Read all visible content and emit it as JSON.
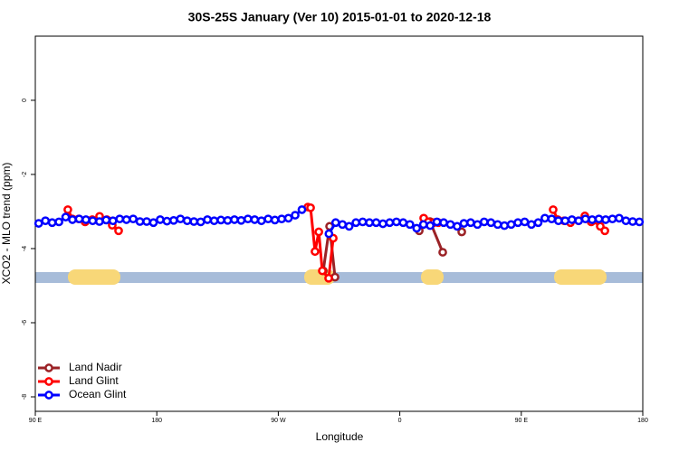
{
  "chart_data": {
    "type": "line",
    "title": "30S-25S January (Ver 10)   2015-01-01 to 2020-12-18",
    "x_label": "Longitude",
    "y_label": "XCO2 - MLO trend (ppm)",
    "xlim": [
      90,
      540
    ],
    "ylim": [
      -8.39,
      1.73
    ],
    "xticks": [
      {
        "value": 90,
        "label": "90 E"
      },
      180,
      {
        "value": 270,
        "label": "90 W"
      },
      {
        "value": 360,
        "label": "0"
      },
      {
        "value": 450,
        "label": "90 E"
      },
      {
        "value": 540,
        "label": "180"
      }
    ],
    "yticks": [
      -8,
      -6,
      -4,
      -2,
      0
    ],
    "legend": "bottom-left",
    "series": [
      {
        "name": "Land Nadir",
        "color": "#9b2226",
        "x": [
          303.3,
          308,
          312,
          null,
          374.4,
          382.4,
          391.8,
          null,
          405.9
        ],
        "values": [
          -4.6,
          -3.4,
          -4.77,
          null,
          -3.52,
          -3.27,
          -4.1,
          null,
          -3.55
        ]
      },
      {
        "name": "Land Glint",
        "color": "#ff0000",
        "x": [
          114.1,
          117.5,
          122.2,
          126.9,
          132.2,
          137.6,
          143,
          147,
          151.7,
          null,
          291.9,
          293.9,
          297.2,
          300,
          302.6,
          307.3,
          310.7,
          null,
          377.7,
          381.1,
          385.1,
          388.5,
          null,
          473.6,
          477,
          481.7,
          486.4,
          492.4,
          497.1,
          501.8,
          506.5,
          508.5,
          511.9
        ],
        "values": [
          -2.95,
          -3.2,
          -3.2,
          -3.28,
          -3.22,
          -3.13,
          -3.22,
          -3.37,
          -3.52,
          null,
          -2.88,
          -2.9,
          -4.08,
          -3.55,
          -4.6,
          -4.8,
          -3.72,
          null,
          -3.18,
          -3.28,
          -3.3,
          -3.3,
          null,
          -2.95,
          -3.22,
          -3.25,
          -3.3,
          -3.25,
          -3.12,
          -3.28,
          -3.25,
          -3.4,
          -3.52
        ]
      },
      {
        "name": "Ocean Glint",
        "color": "#0000ff",
        "x": [
          92.5,
          97.5,
          102.5,
          107.5,
          112.5,
          117.5,
          122.5,
          127.5,
          132.5,
          137.5,
          142.5,
          147.5,
          152.5,
          157.5,
          162.5,
          167.5,
          172.5,
          177.5,
          182.5,
          187.5,
          192.5,
          197.5,
          202.5,
          207.5,
          212.5,
          217.5,
          222.5,
          227.5,
          232.5,
          237.5,
          242.5,
          247.5,
          252.5,
          257.5,
          262.5,
          267.5,
          272.5,
          277.5,
          282.5,
          287.5,
          292.5,
          297.5,
          302.5,
          307.5,
          312.5,
          317.5,
          322.5,
          327.5,
          332.5,
          337.5,
          342.5,
          347.5,
          352.5,
          357.5,
          362.5,
          367.5,
          372.5,
          377.5,
          382.5,
          387.5,
          392.5,
          397.5,
          402.5,
          407.5,
          412.5,
          417.5,
          422.5,
          427.5,
          432.5,
          437.5,
          442.5,
          447.5,
          452.5,
          457.5,
          462.5,
          467.5,
          472.5,
          477.5,
          482.5,
          487.5,
          492.5,
          497.5,
          502.5,
          507.5,
          512.5,
          517.5,
          522.5,
          527.5,
          532.5,
          537.5
        ],
        "values": [
          -3.32,
          -3.25,
          -3.3,
          -3.28,
          -3.15,
          -3.22,
          -3.2,
          -3.22,
          -3.25,
          -3.27,
          -3.23,
          -3.25,
          -3.2,
          -3.22,
          -3.2,
          -3.27,
          -3.27,
          -3.3,
          -3.22,
          -3.26,
          -3.24,
          -3.2,
          -3.25,
          -3.27,
          -3.28,
          -3.22,
          -3.25,
          -3.23,
          -3.24,
          -3.22,
          -3.24,
          -3.2,
          -3.22,
          -3.25,
          -3.2,
          -3.23,
          -3.2,
          -3.18,
          -3.1,
          -2.95,
          null,
          null,
          null,
          -3.6,
          -3.3,
          -3.35,
          -3.4,
          -3.3,
          -3.28,
          -3.3,
          -3.3,
          -3.33,
          -3.3,
          -3.28,
          -3.3,
          -3.35,
          -3.45,
          -3.35,
          -3.38,
          -3.28,
          -3.3,
          -3.35,
          -3.4,
          -3.32,
          -3.3,
          -3.35,
          -3.28,
          -3.3,
          -3.35,
          -3.38,
          -3.35,
          -3.3,
          -3.28,
          -3.35,
          -3.3,
          -3.18,
          -3.2,
          -3.25,
          -3.25,
          -3.22,
          -3.25,
          -3.2,
          -3.22,
          -3.2,
          -3.22,
          -3.2,
          -3.18,
          -3.25,
          -3.27,
          -3.28
        ]
      }
    ]
  }
}
